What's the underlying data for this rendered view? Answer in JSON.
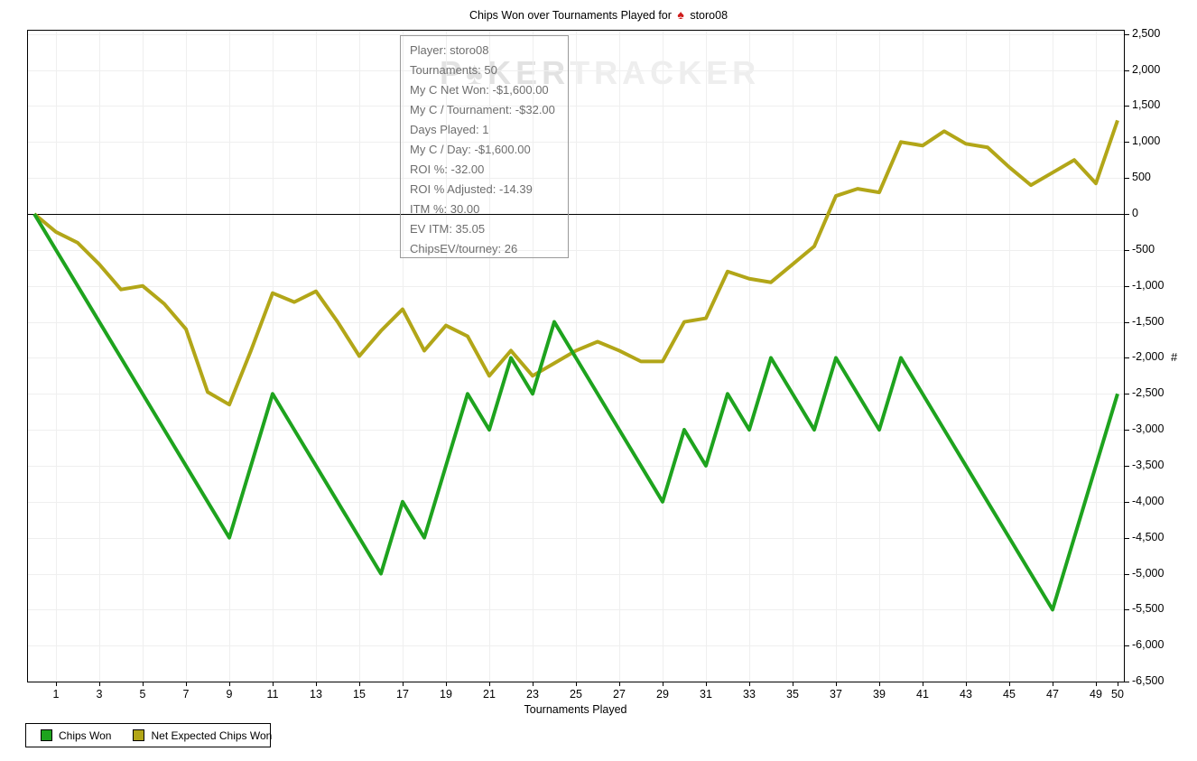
{
  "title": {
    "text_before_icon": "Chips Won over Tournaments Played for",
    "site_icon": "pokerstars-spade",
    "player": "storo08"
  },
  "watermark": {
    "dark_part": "P♠KER",
    "light_part": "TRACKER"
  },
  "tooltip": {
    "lines": [
      "Player: storo08",
      "Tournaments: 50",
      "My C Net Won: -$1,600.00",
      "My C / Tournament: -$32.00",
      "Days Played: 1",
      "My C / Day: -$1,600.00",
      "ROI %: -32.00",
      "ROI % Adjusted: -14.39",
      "ITM %: 30.00",
      "EV ITM: 35.05",
      "ChipsEV/tourney: 26"
    ]
  },
  "legend": {
    "items": [
      {
        "label": "Chips Won",
        "color": "#1ea31e"
      },
      {
        "label": "Net Expected Chips Won",
        "color": "#b2a618"
      }
    ]
  },
  "axes": {
    "x": {
      "title": "Tournaments Played",
      "ticks": [
        1,
        3,
        5,
        7,
        9,
        11,
        13,
        15,
        17,
        19,
        21,
        23,
        25,
        27,
        29,
        31,
        33,
        35,
        37,
        39,
        41,
        43,
        45,
        47,
        49,
        50
      ]
    },
    "y": {
      "title": "#",
      "ticks": [
        2500,
        2000,
        1500,
        1000,
        500,
        0,
        -500,
        -1000,
        -1500,
        -2000,
        -2500,
        -3000,
        -3500,
        -4000,
        -4500,
        -5000,
        -5500,
        -6000,
        -6500
      ]
    }
  },
  "chart_data": {
    "type": "line",
    "title": "Chips Won over Tournaments Played for storo08",
    "xlabel": "Tournaments Played",
    "ylabel": "#",
    "xlim": [
      0,
      50
    ],
    "ylim": [
      -6500,
      2500
    ],
    "grid": true,
    "legend_position": "bottom-left",
    "x_tick_labels": [
      1,
      3,
      5,
      7,
      9,
      11,
      13,
      15,
      17,
      19,
      21,
      23,
      25,
      27,
      29,
      31,
      33,
      35,
      37,
      39,
      41,
      43,
      45,
      47,
      49,
      50
    ],
    "x": [
      0,
      1,
      2,
      3,
      4,
      5,
      6,
      7,
      8,
      9,
      10,
      11,
      12,
      13,
      14,
      15,
      16,
      17,
      18,
      19,
      20,
      21,
      22,
      23,
      24,
      25,
      26,
      27,
      28,
      29,
      30,
      31,
      32,
      33,
      34,
      35,
      36,
      37,
      38,
      39,
      40,
      41,
      42,
      43,
      44,
      45,
      46,
      47,
      48,
      49,
      50
    ],
    "series": [
      {
        "name": "Chips Won",
        "color": "#1ea31e",
        "values": [
          0,
          -500,
          -1000,
          -1500,
          -2000,
          -2500,
          -3000,
          -3500,
          -4000,
          -4500,
          -3500,
          -2500,
          -3000,
          -3500,
          -4000,
          -4500,
          -5000,
          -4000,
          -4500,
          -3500,
          -2500,
          -3000,
          -2000,
          -2500,
          -1500,
          -2000,
          -2500,
          -3000,
          -3500,
          -4000,
          -3000,
          -3500,
          -2500,
          -3000,
          -2000,
          -2500,
          -3000,
          -2000,
          -2500,
          -3000,
          -2000,
          -2500,
          -3000,
          -3500,
          -4000,
          -4500,
          -5000,
          -5500,
          -4500,
          -3500,
          -2500
        ]
      },
      {
        "name": "Net Expected Chips Won",
        "color": "#b2a618",
        "values": [
          0,
          -250,
          -400,
          -700,
          -1050,
          -1000,
          -1250,
          -1600,
          -2475,
          -2650,
          -1900,
          -1100,
          -1225,
          -1075,
          -1500,
          -1975,
          -1625,
          -1325,
          -1900,
          -1550,
          -1700,
          -2250,
          -1900,
          -2250,
          -2075,
          -1900,
          -1775,
          -1900,
          -2050,
          -2050,
          -1500,
          -1450,
          -800,
          -900,
          -950,
          -700,
          -450,
          250,
          350,
          300,
          1000,
          950,
          1150,
          975,
          925,
          650,
          400,
          575,
          750,
          425,
          1300
        ]
      }
    ]
  }
}
